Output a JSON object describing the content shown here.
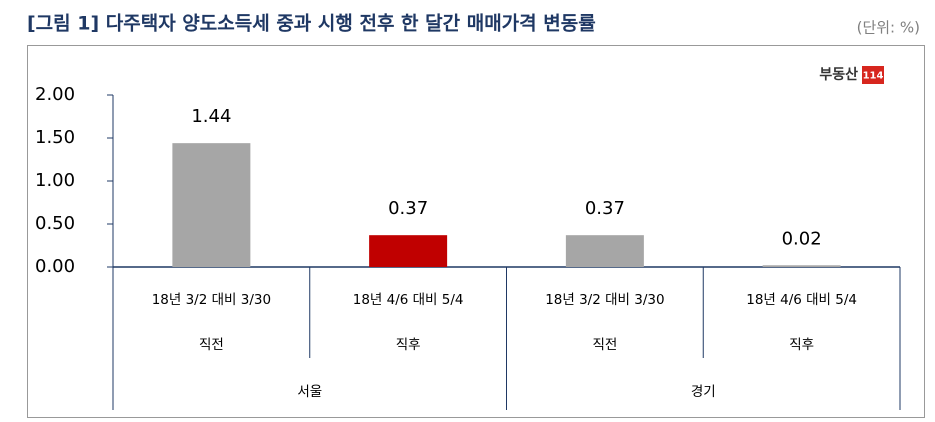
{
  "chart_data": {
    "type": "bar",
    "title": "[그림 1] 다주택자 양도소득세 중과 시행 전후 한 달간 매매가격 변동률",
    "unit": "(단위: %)",
    "source_logo": "부동산",
    "source_logo_badge": "114",
    "categories": [
      "18년 3/2 대비 3/30",
      "18년 4/6 대비 5/4",
      "18년 3/2 대비 3/30",
      "18년 4/6 대비 5/4"
    ],
    "sublabels": [
      "직전",
      "직후",
      "직전",
      "직후"
    ],
    "groups": [
      "서울",
      "경기"
    ],
    "values": [
      1.44,
      0.37,
      0.37,
      0.02
    ],
    "colors": [
      "#a6a6a6",
      "#c00000",
      "#a6a6a6",
      "#a6a6a6"
    ],
    "ylim": [
      0,
      2
    ],
    "yticks": [
      {
        "value": 0,
        "label": "0.00"
      },
      {
        "value": 0.5,
        "label": "0.50"
      },
      {
        "value": 1,
        "label": "1.00"
      },
      {
        "value": 1.5,
        "label": "1.50"
      },
      {
        "value": 2,
        "label": "2.00"
      }
    ]
  }
}
